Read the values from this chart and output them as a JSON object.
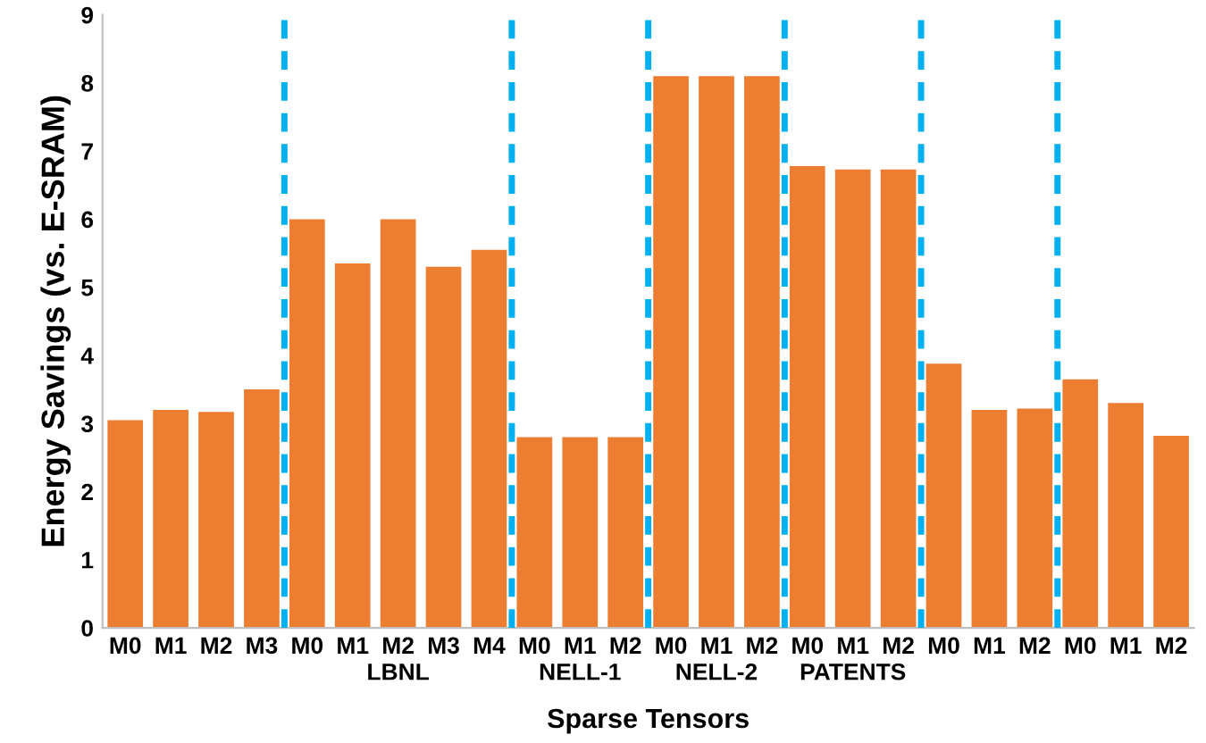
{
  "chart_data": {
    "type": "bar",
    "xlabel": "Sparse Tensors",
    "ylabel": "Energy Savings (vs. E-SRAM)",
    "categories": [
      "M0",
      "M1",
      "M2",
      "M3",
      "M0",
      "M1",
      "M2",
      "M3",
      "M4",
      "M0",
      "M1",
      "M2",
      "M0",
      "M1",
      "M2",
      "M0",
      "M1",
      "M2",
      "M0",
      "M1",
      "M2",
      "M0",
      "M1",
      "M2"
    ],
    "values": [
      3.05,
      3.2,
      3.17,
      3.5,
      6.0,
      5.35,
      6.0,
      5.3,
      5.55,
      2.8,
      2.8,
      2.8,
      8.1,
      8.1,
      8.1,
      6.78,
      6.73,
      6.73,
      3.88,
      3.2,
      3.22,
      3.65,
      3.3,
      2.82
    ],
    "color": "#ed7d31",
    "ylim": [
      0,
      9
    ],
    "yticks": [
      0,
      1,
      2,
      3,
      4,
      5,
      6,
      7,
      8,
      9
    ],
    "grid": false,
    "annotations": [
      null,
      "LBNL",
      "NELL-1",
      "NELL-2",
      "PATENTS",
      null,
      null
    ]
  }
}
